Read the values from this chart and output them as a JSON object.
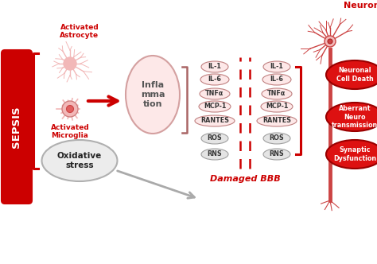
{
  "title": "Damaged BBB",
  "bg_color": "#ffffff",
  "red": "#cc0000",
  "dark_red": "#880000",
  "light_red": "#f2b8b8",
  "light_pink": "#faeaea",
  "light_gray": "#e8e8e8",
  "mid_gray": "#c8c8c8",
  "sepsis_label": "SEPSIS",
  "neuron_label": "Neuron",
  "astrocyte_label": "Activated\nAstrocyte",
  "microglia_label": "Activated\nMicroglia",
  "inflammation_label": "Infla\nmma\ntion",
  "oxidative_label": "Oxidative\nstress",
  "left_molecules": [
    "IL-1",
    "IL-6",
    "TNFα",
    "MCP-1",
    "RANTES",
    "ROS",
    "RNS"
  ],
  "right_molecules": [
    "IL-1",
    "IL-6",
    "TNFα",
    "MCP-1",
    "RANTES",
    "ROS",
    "RNS"
  ],
  "effects": [
    "Neuronal\nCell Death",
    "Aberrant\nNeuro\ntransmission",
    "Synaptic\nDysfunction"
  ]
}
